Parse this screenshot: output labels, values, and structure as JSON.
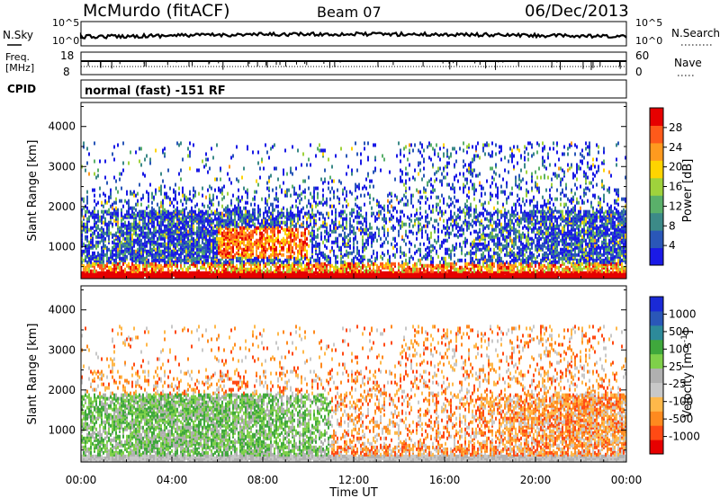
{
  "header": {
    "station": "McMurdo (fitACF)",
    "beam": "Beam 07",
    "date": "06/Dec/2013"
  },
  "noise_panel": {
    "left_label": "N.Sky",
    "right_label": "N.Search",
    "left_ticks": [
      "10^5",
      "10^0"
    ],
    "right_ticks": [
      "10^5",
      "10^0"
    ]
  },
  "freq_panel": {
    "left_label_1": "Freq.",
    "left_label_2": "[MHz]",
    "right_label": "Nave",
    "left_ticks": [
      "18",
      "8"
    ],
    "right_ticks": [
      "60",
      "0"
    ]
  },
  "cpid_panel": {
    "label": "CPID",
    "text": "normal (fast) -151 RF"
  },
  "colors": {
    "power_scale": [
      "#1a1ae6",
      "#2a57b8",
      "#3c8a88",
      "#5ab06a",
      "#9fd23c",
      "#ffd400",
      "#ff9a1f",
      "#ff5a1a",
      "#e60000"
    ],
    "velocity_scale": [
      "#e60000",
      "#ff4a14",
      "#ff8a1f",
      "#ffb84a",
      "#c8c8c8",
      "#b0b0b0",
      "#7fd04a",
      "#3fa83c",
      "#2d8a9a",
      "#2a57b8",
      "#1a2ad6"
    ]
  },
  "chart_data": [
    {
      "type": "heatmap",
      "name": "power",
      "ylabel": "Slant Range [km]",
      "yticks": [
        "1000",
        "2000",
        "3000",
        "4000"
      ],
      "ylim": [
        200,
        4600
      ],
      "xlim_hours": [
        0,
        24
      ],
      "colorbar_label": "Power [dB]",
      "colorbar_ticks": [
        "4",
        "8",
        "12",
        "16",
        "20",
        "24",
        "28"
      ],
      "colorbar_range": [
        0,
        32
      ]
    },
    {
      "type": "heatmap",
      "name": "velocity",
      "ylabel": "Slant Range [km]",
      "yticks": [
        "1000",
        "2000",
        "3000",
        "4000"
      ],
      "ylim": [
        200,
        4600
      ],
      "xlim_hours": [
        0,
        24
      ],
      "xlabel": "Time UT",
      "xticks": [
        "00:00",
        "04:00",
        "08:00",
        "12:00",
        "16:00",
        "20:00",
        "00:00"
      ],
      "colorbar_label": "Velocity [m s",
      "colorbar_label_sup": "-1",
      "colorbar_ticks": [
        "-1000",
        "-500",
        "-100",
        "-25",
        "25",
        "100",
        "500",
        "1000"
      ]
    }
  ]
}
